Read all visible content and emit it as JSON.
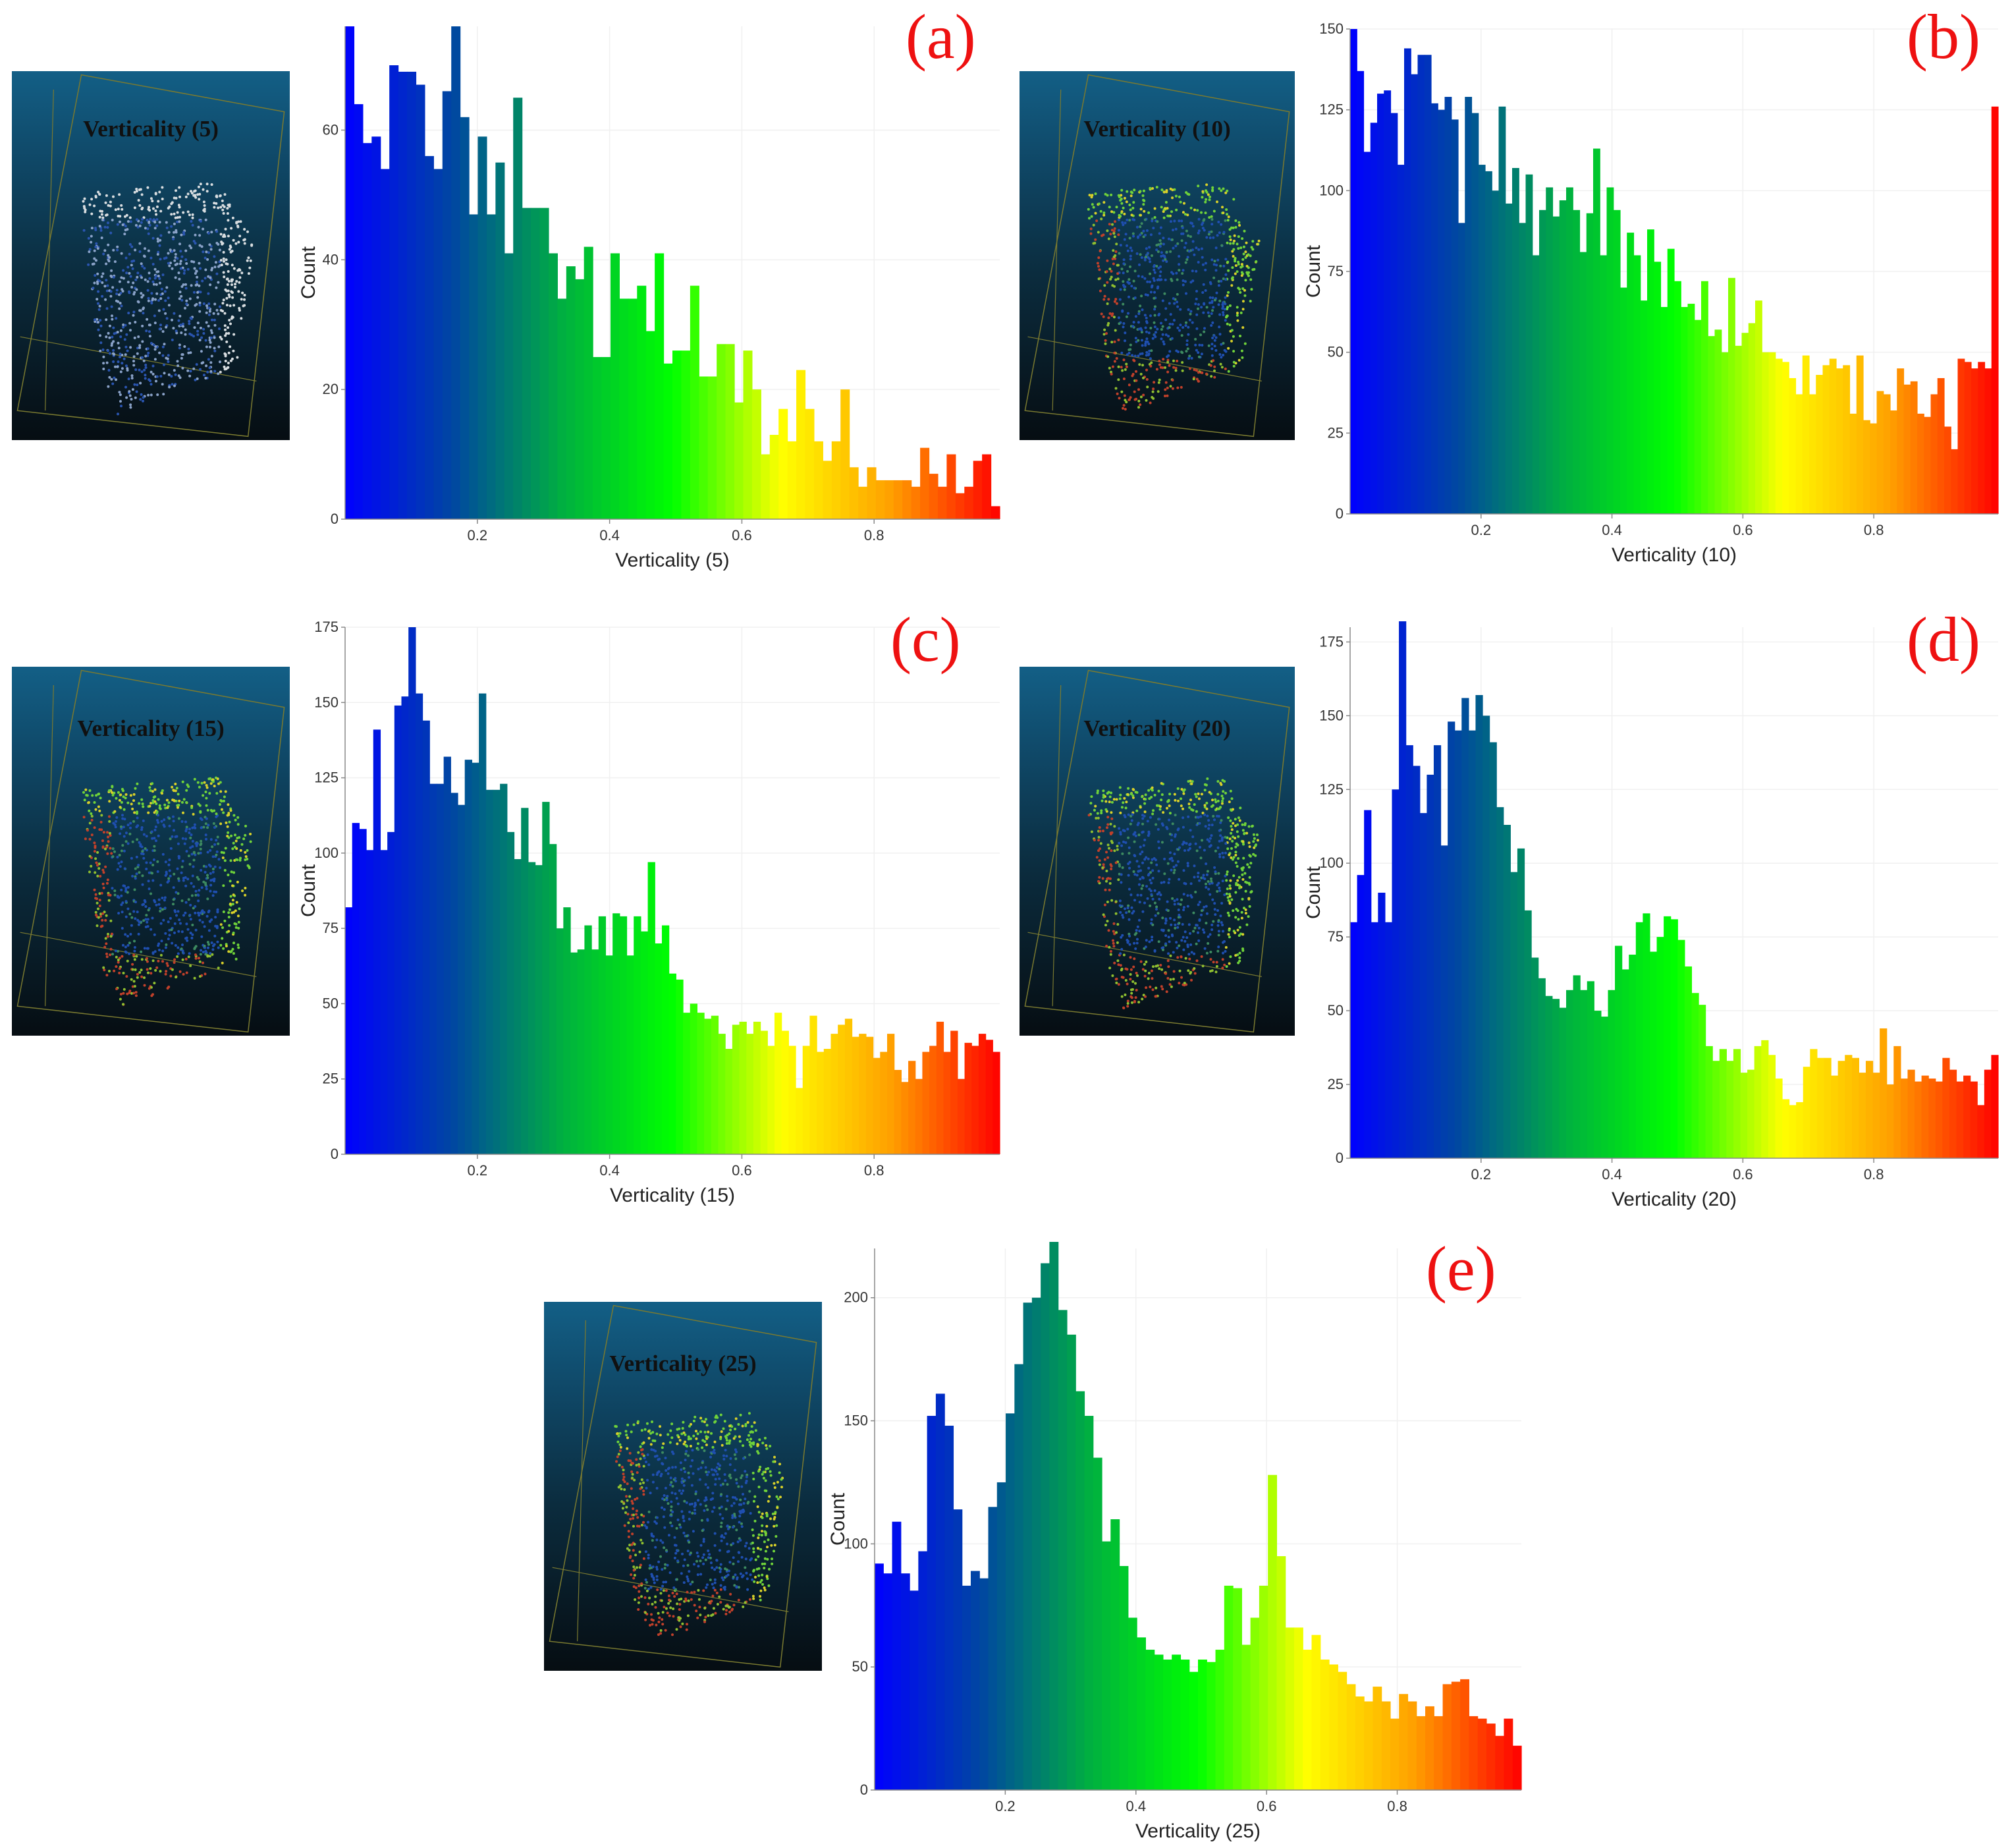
{
  "panels": [
    {
      "letter": "(a)",
      "thumb_label": "Verticality (5)"
    },
    {
      "letter": "(b)",
      "thumb_label": "Verticality (10)"
    },
    {
      "letter": "(c)",
      "thumb_label": "Verticality (15)"
    },
    {
      "letter": "(d)",
      "thumb_label": "Verticality (20)"
    },
    {
      "letter": "(e)",
      "thumb_label": "Verticality (25)"
    }
  ],
  "chart_data": [
    {
      "type": "bar",
      "xlabel": "Verticality (5)",
      "ylabel": "Count",
      "xlim": [
        0,
        0.99
      ],
      "ylim": [
        0,
        76
      ],
      "xticks": [
        "0.2",
        "0.4",
        "0.6",
        "0.8"
      ],
      "yticks": [
        "0",
        "20",
        "40",
        "60"
      ],
      "values": [
        76,
        64,
        58,
        59,
        54,
        70,
        69,
        69,
        67,
        56,
        54,
        66,
        76,
        62,
        47,
        59,
        47,
        55,
        41,
        65,
        48,
        48,
        48,
        41,
        34,
        39,
        37,
        42,
        25,
        25,
        41,
        34,
        34,
        36,
        29,
        41,
        24,
        26,
        26,
        36,
        22,
        22,
        27,
        27,
        18,
        26,
        20,
        10,
        13,
        17,
        12,
        23,
        17,
        12,
        9,
        12,
        20,
        8,
        5,
        8,
        6,
        6,
        6,
        6,
        5,
        11,
        7,
        5,
        10,
        4,
        5,
        9,
        10,
        2
      ],
      "colormap": [
        "#0000ff",
        "#0048a0",
        "#00b040",
        "#00ff00",
        "#ffff00",
        "#ffa000",
        "#ff0000"
      ]
    },
    {
      "type": "bar",
      "xlabel": "Verticality (10)",
      "ylabel": "Count",
      "xlim": [
        0,
        0.99
      ],
      "ylim": [
        0,
        150
      ],
      "xticks": [
        "0.2",
        "0.4",
        "0.6",
        "0.8"
      ],
      "yticks": [
        "0",
        "25",
        "50",
        "75",
        "100",
        "125",
        "150"
      ],
      "values": [
        150,
        137,
        112,
        121,
        130,
        131,
        124,
        108,
        144,
        136,
        142,
        142,
        127,
        125,
        129,
        122,
        90,
        129,
        124,
        108,
        106,
        100,
        126,
        96,
        107,
        90,
        105,
        80,
        94,
        101,
        92,
        97,
        101,
        94,
        81,
        93,
        113,
        80,
        101,
        94,
        70,
        87,
        80,
        66,
        88,
        78,
        64,
        82,
        72,
        64,
        65,
        60,
        72,
        55,
        57,
        50,
        73,
        52,
        56,
        59,
        66,
        50,
        50,
        48,
        47,
        42,
        37,
        49,
        37,
        43,
        46,
        48,
        45,
        46,
        31,
        49,
        29,
        28,
        38,
        37,
        32,
        45,
        40,
        41,
        31,
        30,
        37,
        42,
        27,
        20,
        48,
        47,
        45,
        47,
        45,
        126
      ],
      "colormap": [
        "#0000ff",
        "#0048a0",
        "#00b040",
        "#00ff00",
        "#ffff00",
        "#ffa000",
        "#ff0000"
      ]
    },
    {
      "type": "bar",
      "xlabel": "Verticality (15)",
      "ylabel": "Count",
      "xlim": [
        0,
        0.99
      ],
      "ylim": [
        0,
        175
      ],
      "xticks": [
        "0.2",
        "0.4",
        "0.6",
        "0.8"
      ],
      "yticks": [
        "0",
        "25",
        "50",
        "75",
        "100",
        "125",
        "150",
        "175"
      ],
      "values": [
        82,
        110,
        108,
        101,
        141,
        101,
        107,
        149,
        152,
        175,
        153,
        144,
        123,
        123,
        132,
        120,
        116,
        131,
        130,
        153,
        121,
        121,
        123,
        107,
        98,
        115,
        97,
        96,
        117,
        103,
        75,
        82,
        67,
        68,
        76,
        68,
        79,
        66,
        80,
        79,
        66,
        79,
        74,
        97,
        70,
        76,
        60,
        58,
        47,
        50,
        47,
        45,
        46,
        40,
        35,
        43,
        44,
        40,
        44,
        41,
        36,
        47,
        41,
        36,
        22,
        36,
        46,
        34,
        35,
        40,
        43,
        45,
        39,
        40,
        39,
        32,
        34,
        40,
        28,
        24,
        31,
        25,
        34,
        36,
        44,
        34,
        41,
        25,
        37,
        36,
        40,
        38,
        34
      ],
      "colormap": [
        "#0000ff",
        "#0048a0",
        "#00b040",
        "#00ff00",
        "#ffff00",
        "#ffa000",
        "#ff0000"
      ]
    },
    {
      "type": "bar",
      "xlabel": "Verticality (20)",
      "ylabel": "Count",
      "xlim": [
        0,
        0.99
      ],
      "ylim": [
        0,
        180
      ],
      "xticks": [
        "0.2",
        "0.4",
        "0.6",
        "0.8"
      ],
      "yticks": [
        "0",
        "25",
        "50",
        "75",
        "100",
        "125",
        "150",
        "175"
      ],
      "values": [
        80,
        96,
        118,
        80,
        90,
        80,
        125,
        182,
        140,
        133,
        117,
        130,
        140,
        106,
        148,
        145,
        156,
        145,
        157,
        150,
        141,
        119,
        113,
        97,
        105,
        84,
        68,
        61,
        55,
        54,
        51,
        57,
        62,
        57,
        60,
        50,
        48,
        57,
        72,
        64,
        69,
        80,
        83,
        70,
        75,
        82,
        81,
        74,
        65,
        56,
        52,
        38,
        33,
        37,
        33,
        37,
        29,
        30,
        38,
        40,
        35,
        27,
        20,
        18,
        19,
        31,
        37,
        34,
        34,
        28,
        33,
        35,
        34,
        29,
        33,
        29,
        44,
        25,
        38,
        27,
        30,
        26,
        28,
        27,
        26,
        34,
        30,
        26,
        28,
        26,
        18,
        30,
        35
      ],
      "colormap": [
        "#0000ff",
        "#0048a0",
        "#00b040",
        "#00ff00",
        "#ffff00",
        "#ffa000",
        "#ff0000"
      ]
    },
    {
      "type": "bar",
      "xlabel": "Verticality (25)",
      "ylabel": "Count",
      "xlim": [
        0,
        0.99
      ],
      "ylim": [
        0,
        220
      ],
      "xticks": [
        "0.2",
        "0.4",
        "0.6",
        "0.8"
      ],
      "yticks": [
        "0",
        "50",
        "100",
        "150",
        "200"
      ],
      "values": [
        92,
        88,
        109,
        88,
        81,
        97,
        152,
        161,
        148,
        114,
        83,
        89,
        86,
        115,
        125,
        153,
        173,
        198,
        200,
        214,
        224,
        195,
        185,
        162,
        152,
        135,
        101,
        110,
        91,
        70,
        62,
        57,
        55,
        53,
        55,
        53,
        48,
        53,
        52,
        57,
        83,
        82,
        59,
        70,
        83,
        128,
        95,
        66,
        66,
        57,
        63,
        53,
        51,
        48,
        43,
        38,
        36,
        42,
        36,
        29,
        39,
        36,
        30,
        34,
        30,
        43,
        44,
        45,
        30,
        29,
        27,
        22,
        29,
        18
      ],
      "colormap": [
        "#0000ff",
        "#0048a0",
        "#00b040",
        "#00ff00",
        "#ffff00",
        "#ffa000",
        "#ff0000"
      ]
    }
  ]
}
